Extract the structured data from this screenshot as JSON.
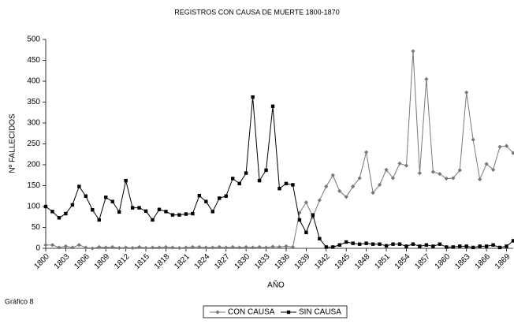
{
  "chart_data": {
    "type": "line",
    "title": "REGISTROS CON CAUSA DE MUERTE 1800-1870",
    "ylabel": "Nº FALLECIDOS",
    "xlabel": "AÑO",
    "footnote": "Gráfico 8",
    "categories": [
      "1800",
      null,
      null,
      "1803",
      null,
      null,
      "1806",
      null,
      null,
      "1809",
      null,
      null,
      "1812",
      null,
      null,
      "1815",
      null,
      null,
      "1818",
      null,
      null,
      "1821",
      null,
      null,
      "1824",
      null,
      null,
      "1827",
      null,
      null,
      "1830",
      null,
      null,
      "1833",
      null,
      null,
      "1836",
      null,
      null,
      "1839",
      null,
      null,
      "1842",
      null,
      null,
      "1845",
      null,
      null,
      "1848",
      null,
      null,
      "1851",
      null,
      null,
      "1854",
      null,
      null,
      "1857",
      null,
      null,
      "1860",
      null,
      null,
      "1863",
      null,
      null,
      "1866",
      null,
      null,
      "1869",
      null
    ],
    "series": [
      {
        "name": "CON CAUSA",
        "color": "#777777",
        "marker": "diamond",
        "values": [
          8,
          8,
          2,
          5,
          2,
          8,
          2,
          0,
          3,
          2,
          3,
          1,
          2,
          1,
          3,
          1,
          2,
          2,
          3,
          2,
          1,
          2,
          3,
          3,
          2,
          2,
          3,
          2,
          3,
          2,
          3,
          2,
          3,
          2,
          4,
          3,
          5,
          3,
          85,
          110,
          75,
          115,
          148,
          175,
          137,
          123,
          148,
          168,
          230,
          133,
          152,
          188,
          168,
          203,
          198,
          472,
          180,
          405,
          183,
          178,
          167,
          168,
          187,
          373,
          260,
          165,
          202,
          188,
          243,
          245,
          228
        ]
      },
      {
        "name": "SIN CAUSA",
        "color": "#000000",
        "marker": "square",
        "values": [
          100,
          88,
          73,
          83,
          104,
          148,
          125,
          92,
          68,
          122,
          112,
          87,
          162,
          97,
          97,
          89,
          68,
          93,
          88,
          80,
          80,
          82,
          83,
          126,
          112,
          88,
          120,
          125,
          167,
          155,
          180,
          362,
          162,
          187,
          340,
          143,
          155,
          152,
          68,
          38,
          80,
          23,
          3,
          3,
          8,
          15,
          12,
          10,
          12,
          10,
          10,
          6,
          10,
          10,
          5,
          10,
          5,
          8,
          5,
          10,
          3,
          3,
          5,
          5,
          2,
          5,
          5,
          8,
          2,
          5,
          18
        ]
      }
    ],
    "ylim": [
      0,
      500
    ],
    "yticks": [
      0,
      50,
      100,
      150,
      200,
      250,
      300,
      350,
      400,
      450,
      500
    ],
    "grid": false,
    "legend": "bottom"
  }
}
